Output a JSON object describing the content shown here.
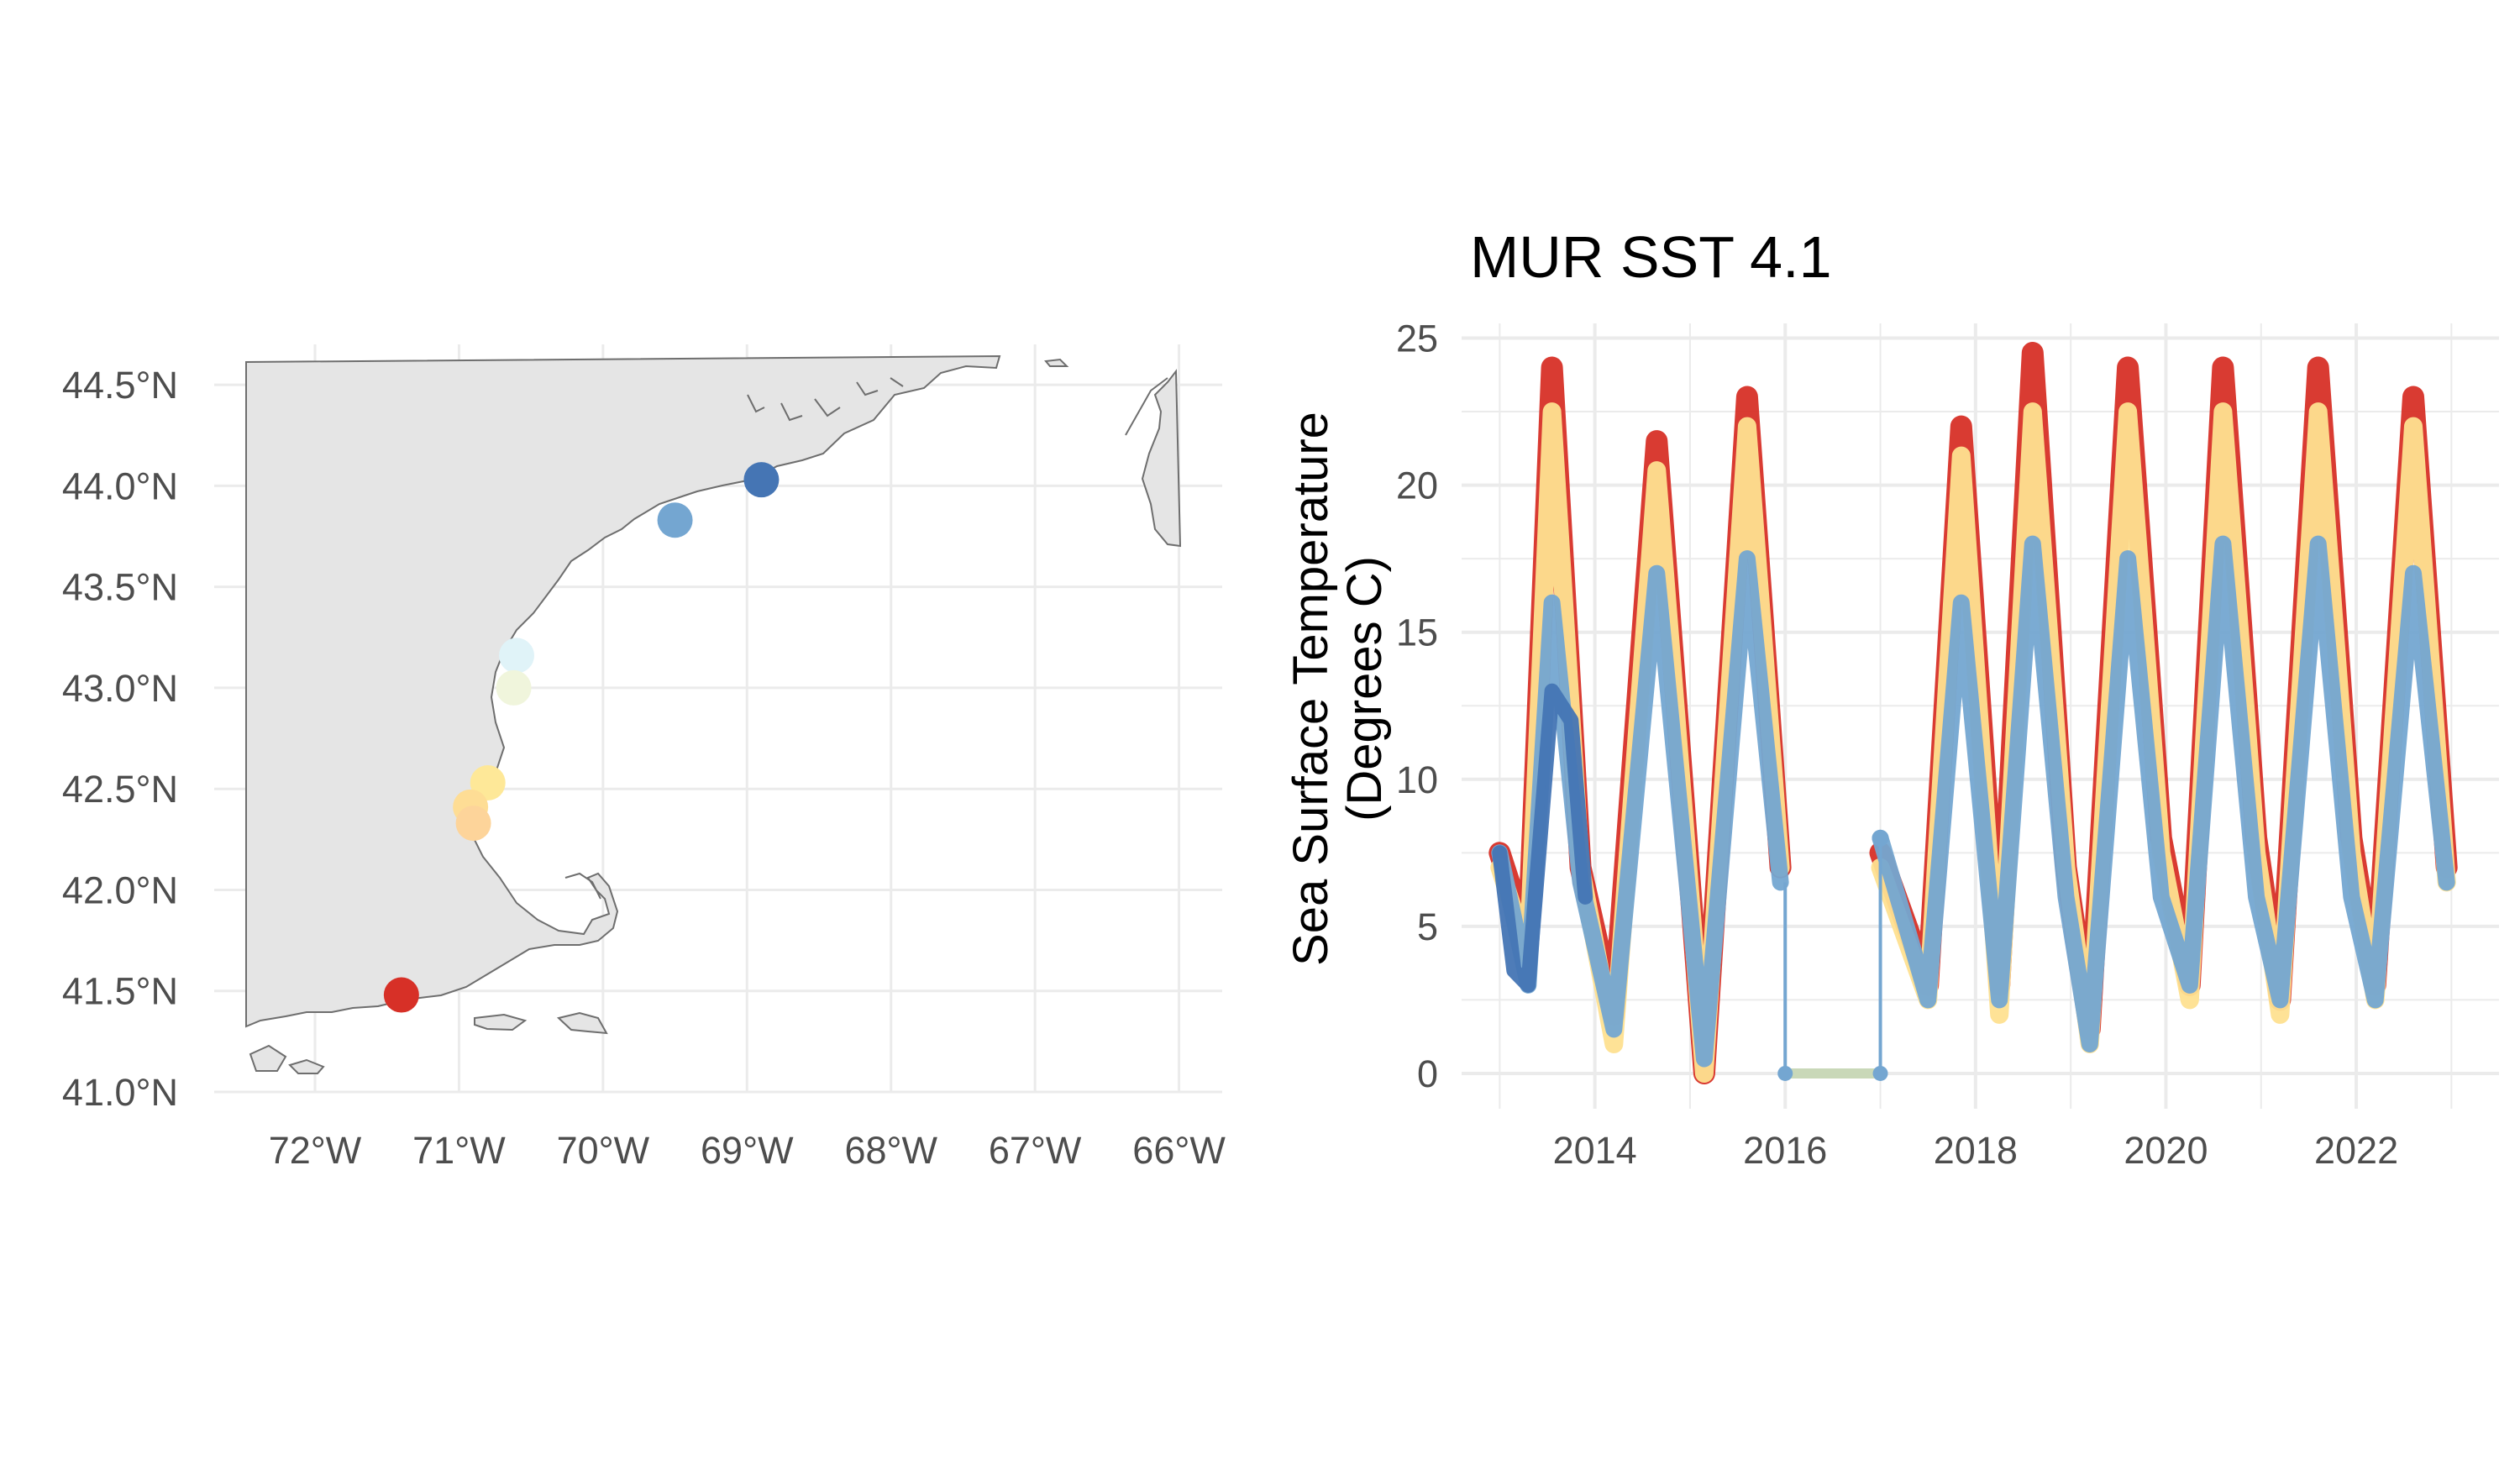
{
  "chart_data": [
    {
      "type": "scatter",
      "subtype": "map",
      "title": "",
      "xlabel": "",
      "ylabel": "",
      "xlim": [
        -72.7,
        -65.7
      ],
      "ylim": [
        41.0,
        44.7
      ],
      "x_ticks": [
        -72,
        -71,
        -70,
        -69,
        -68,
        -67,
        -66
      ],
      "x_tick_labels": [
        "72°W",
        "71°W",
        "70°W",
        "69°W",
        "68°W",
        "67°W",
        "66°W"
      ],
      "y_ticks": [
        41.0,
        41.5,
        42.0,
        42.5,
        43.0,
        43.5,
        44.0,
        44.5
      ],
      "y_tick_labels": [
        "41.0°N",
        "41.5°N",
        "42.0°N",
        "42.5°N",
        "43.0°N",
        "43.5°N",
        "44.0°N",
        "44.5°N"
      ],
      "grid": true,
      "land_color": "#e5e5e5",
      "coastline_color": "#6e6e6e",
      "points": [
        {
          "lon": -68.9,
          "lat": 44.03,
          "color": "#4575b4"
        },
        {
          "lon": -69.5,
          "lat": 43.83,
          "color": "#74a6d1"
        },
        {
          "lon": -70.6,
          "lat": 43.16,
          "color": "#e0f3f8"
        },
        {
          "lon": -70.62,
          "lat": 43.0,
          "color": "#f0f5dc"
        },
        {
          "lon": -70.8,
          "lat": 42.53,
          "color": "#fee898"
        },
        {
          "lon": -70.92,
          "lat": 42.41,
          "color": "#fedd95"
        },
        {
          "lon": -70.9,
          "lat": 42.33,
          "color": "#fdd49a"
        },
        {
          "lon": -71.4,
          "lat": 41.48,
          "color": "#d73027"
        }
      ]
    },
    {
      "type": "line",
      "title": "MUR SST 4.1",
      "xlabel": "",
      "ylabel": "Sea Surface Temperature (Degrees C)",
      "ylabel_lines": [
        "Sea Surface Temperature",
        "(Degrees C)"
      ],
      "xlim": [
        2012.6,
        2023.5
      ],
      "ylim": [
        -1.2,
        25.5
      ],
      "x_ticks": [
        2014,
        2016,
        2018,
        2020,
        2022
      ],
      "x_tick_labels": [
        "2014",
        "2016",
        "2018",
        "2020",
        "2022"
      ],
      "y_ticks": [
        0,
        5,
        10,
        15,
        20,
        25
      ],
      "y_tick_labels": [
        "0",
        "5",
        "10",
        "15",
        "20",
        "25"
      ],
      "grid": true,
      "legend": "none",
      "gap": {
        "start": 2016.0,
        "end": 2017.0,
        "value": 0
      },
      "series": [
        {
          "color": "#d73027",
          "x": [
            2013.0,
            2013.3,
            2013.55,
            2013.85,
            2014.2,
            2014.65,
            2015.15,
            2015.6,
            2015.95,
            2017.0,
            2017.5,
            2017.85,
            2018.25,
            2018.6,
            2018.95,
            2019.2,
            2019.6,
            2019.95,
            2020.25,
            2020.6,
            2020.95,
            2021.2,
            2021.6,
            2021.95,
            2022.2,
            2022.6,
            2022.95
          ],
          "y": [
            7.5,
            4.5,
            24.0,
            7.0,
            2.0,
            21.5,
            0.0,
            23.0,
            7.0,
            7.5,
            3.0,
            22.0,
            3.0,
            24.5,
            7.0,
            1.5,
            24.0,
            8.0,
            3.0,
            24.0,
            8.0,
            2.5,
            24.0,
            8.0,
            3.0,
            23.0,
            7.0
          ]
        },
        {
          "color": "#fee090",
          "x": [
            2013.0,
            2013.3,
            2013.55,
            2013.85,
            2014.2,
            2014.65,
            2015.15,
            2015.6,
            2015.95,
            2017.0,
            2017.5,
            2017.85,
            2018.25,
            2018.6,
            2018.95,
            2019.2,
            2019.6,
            2019.95,
            2020.25,
            2020.6,
            2020.95,
            2021.2,
            2021.6,
            2021.95,
            2022.2,
            2022.6,
            2022.95
          ],
          "y": [
            7.0,
            4.0,
            22.5,
            7.0,
            1.0,
            20.5,
            0.0,
            22.0,
            7.0,
            7.0,
            2.5,
            21.0,
            2.0,
            22.5,
            7.0,
            1.0,
            22.5,
            7.5,
            2.5,
            22.5,
            7.5,
            2.0,
            22.5,
            7.5,
            2.5,
            22.0,
            6.5
          ]
        },
        {
          "color": "#74a6d1",
          "x": [
            2013.0,
            2013.3,
            2013.55,
            2013.85,
            2014.2,
            2014.65,
            2015.15,
            2015.6,
            2015.95,
            2017.0,
            2017.5,
            2017.85,
            2018.25,
            2018.6,
            2018.95,
            2019.2,
            2019.6,
            2019.95,
            2020.25,
            2020.6,
            2020.95,
            2021.2,
            2021.6,
            2021.95,
            2022.2,
            2022.6,
            2022.95
          ],
          "y": [
            7.5,
            3.0,
            16.0,
            6.5,
            1.5,
            17.0,
            0.5,
            17.5,
            6.5,
            8.0,
            2.5,
            16.0,
            2.5,
            18.0,
            6.0,
            1.0,
            17.5,
            6.0,
            3.0,
            18.0,
            6.0,
            2.5,
            18.0,
            6.0,
            2.5,
            17.0,
            6.5
          ]
        },
        {
          "color": "#4575b4",
          "x": [
            2013.0,
            2013.15,
            2013.3,
            2013.55,
            2013.75,
            2013.9
          ],
          "y": [
            7.5,
            3.5,
            3.0,
            13.0,
            12.0,
            6.0
          ]
        }
      ]
    }
  ]
}
